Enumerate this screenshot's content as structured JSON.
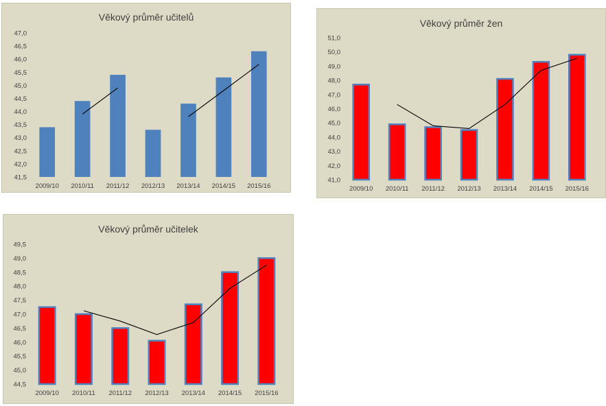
{
  "colors": {
    "background": "#dddac6",
    "teachers_bar": "#4f81bd",
    "women_bar": "#ff0000",
    "women_bar_border": "#4f81bd",
    "trend_line": "#000000",
    "axis_text": "#404040"
  },
  "chart_data": [
    {
      "type": "bar",
      "title": "Věkový průměr učitelů",
      "categories": [
        "2009/10",
        "2010/11",
        "2011/12",
        "2012/13",
        "2013/14",
        "2014/15",
        "2015/16"
      ],
      "values": [
        43.4,
        44.4,
        45.4,
        43.3,
        44.3,
        45.3,
        46.3
      ],
      "trend": [
        null,
        43.9,
        44.9,
        null,
        43.8,
        44.8,
        45.8
      ],
      "ylim": [
        41.5,
        47.0
      ],
      "yticks": [
        "41,5",
        "42,0",
        "42,5",
        "43,0",
        "43,5",
        "44,0",
        "44,5",
        "45,0",
        "45,5",
        "46,0",
        "46,5",
        "47,0"
      ],
      "ytick_values": [
        41.5,
        42.0,
        42.5,
        43.0,
        43.5,
        44.0,
        44.5,
        45.0,
        45.5,
        46.0,
        46.5,
        47.0
      ],
      "xlabel": "",
      "ylabel": "",
      "grid": false,
      "legend": "none",
      "bar_color": "#4f81bd",
      "bar_border": "#4f81bd"
    },
    {
      "type": "bar",
      "title": "Věkový průměr žen",
      "categories": [
        "2009/10",
        "2010/11",
        "2011/12",
        "2012/13",
        "2013/14",
        "2014/15",
        "2015/16"
      ],
      "values": [
        47.7,
        44.9,
        44.7,
        44.5,
        48.1,
        49.3,
        49.8
      ],
      "trend": [
        null,
        46.3,
        44.8,
        44.6,
        46.3,
        48.7,
        49.55
      ],
      "ylim": [
        41.0,
        51.0
      ],
      "yticks": [
        "41,0",
        "42,0",
        "43,0",
        "44,0",
        "45,0",
        "46,0",
        "47,0",
        "48,0",
        "49,0",
        "50,0",
        "51,0"
      ],
      "ytick_values": [
        41,
        42,
        43,
        44,
        45,
        46,
        47,
        48,
        49,
        50,
        51
      ],
      "xlabel": "",
      "ylabel": "",
      "grid": false,
      "legend": "none",
      "bar_color": "#ff0000",
      "bar_border": "#4f81bd"
    },
    {
      "type": "bar",
      "title": "Věkový průměr učitelek",
      "categories": [
        "2009/10",
        "2010/11",
        "2011/12",
        "2012/13",
        "2013/14",
        "2014/15",
        "2015/16"
      ],
      "values": [
        47.25,
        47.0,
        46.5,
        46.05,
        47.35,
        48.5,
        49.0
      ],
      "trend": [
        null,
        47.12,
        46.75,
        46.27,
        46.7,
        47.92,
        48.75
      ],
      "ylim": [
        44.5,
        49.5
      ],
      "yticks": [
        "44,5",
        "45,0",
        "45,5",
        "46,0",
        "46,5",
        "47,0",
        "47,5",
        "48,0",
        "48,5",
        "49,0",
        "49,5"
      ],
      "ytick_values": [
        44.5,
        45.0,
        45.5,
        46.0,
        46.5,
        47.0,
        47.5,
        48.0,
        48.5,
        49.0,
        49.5
      ],
      "xlabel": "",
      "ylabel": "",
      "grid": false,
      "legend": "none",
      "bar_color": "#ff0000",
      "bar_border": "#4f81bd"
    }
  ]
}
